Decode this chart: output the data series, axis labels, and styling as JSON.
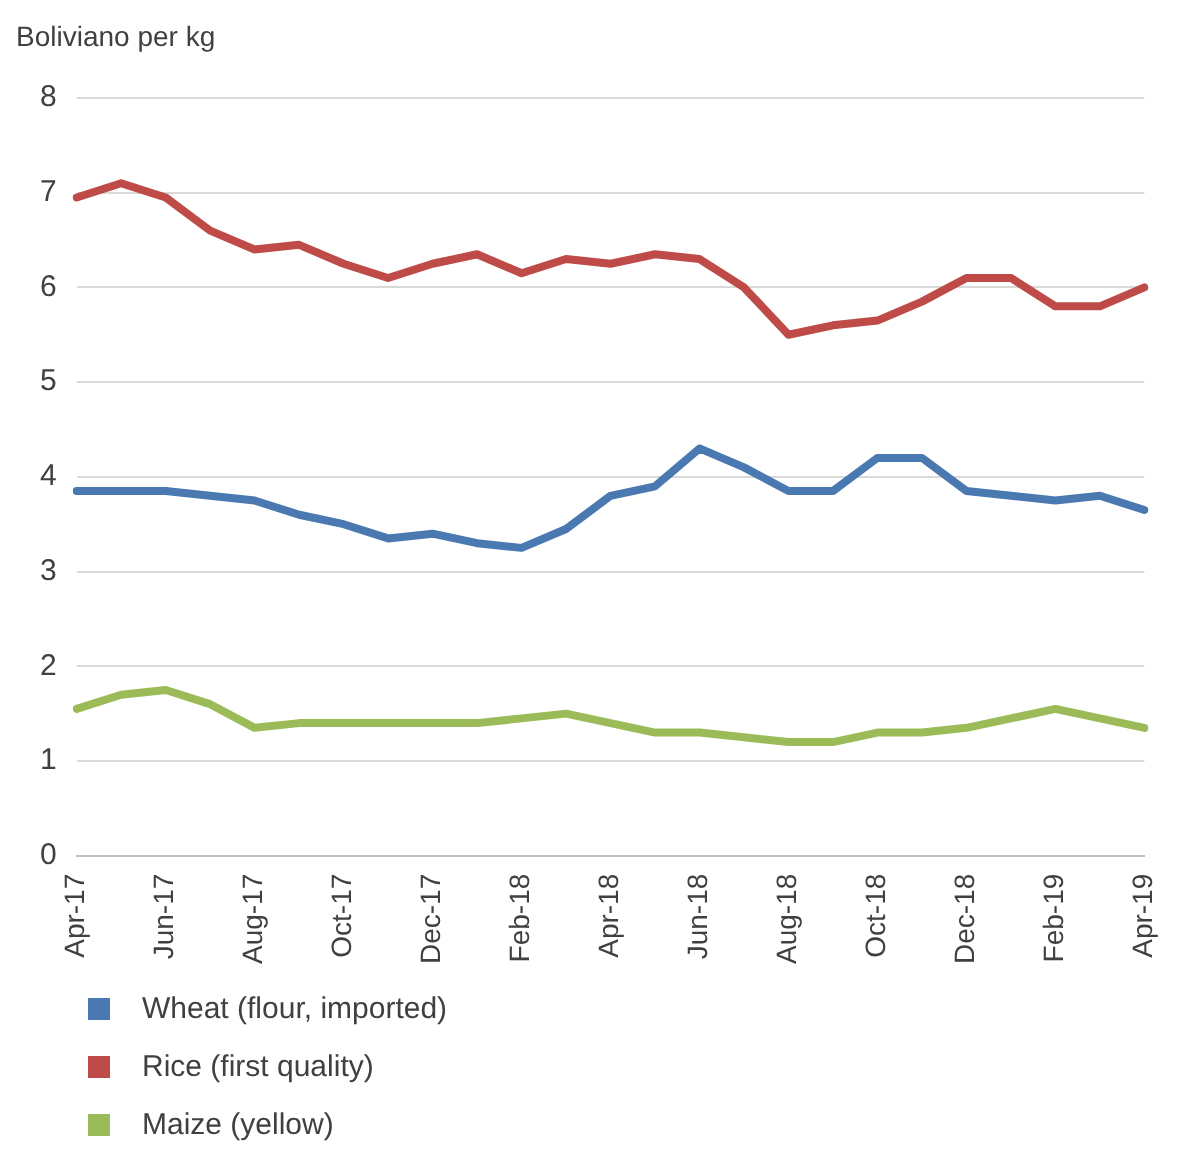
{
  "chart_data": {
    "type": "line",
    "ylabel": "Boliviano per kg",
    "categories": [
      "Apr-17",
      null,
      "Jun-17",
      null,
      "Aug-17",
      null,
      "Oct-17",
      null,
      "Dec-17",
      null,
      "Feb-18",
      null,
      "Apr-18",
      null,
      "Jun-18",
      null,
      "Aug-18",
      null,
      "Oct-18",
      null,
      "Dec-18",
      null,
      "Feb-19",
      null,
      "Apr-19"
    ],
    "series": [
      {
        "name": "Wheat (flour, imported)",
        "color": "#4a78b0",
        "values": [
          3.85,
          3.85,
          3.85,
          3.8,
          3.75,
          3.6,
          3.5,
          3.35,
          3.4,
          3.3,
          3.25,
          3.45,
          3.8,
          3.9,
          4.3,
          4.1,
          3.85,
          3.85,
          4.2,
          4.2,
          3.85,
          3.8,
          3.75,
          3.8,
          3.65
        ]
      },
      {
        "name": "Rice (first quality)",
        "color": "#be4b48",
        "values": [
          6.95,
          7.1,
          6.95,
          6.6,
          6.4,
          6.45,
          6.25,
          6.1,
          6.25,
          6.35,
          6.15,
          6.3,
          6.25,
          6.35,
          6.3,
          6.0,
          5.5,
          5.6,
          5.65,
          5.85,
          6.1,
          6.1,
          5.8,
          5.8,
          6.0
        ]
      },
      {
        "name": "Maize (yellow)",
        "color": "#9bbb59",
        "values": [
          1.55,
          1.7,
          1.75,
          1.6,
          1.35,
          1.4,
          1.4,
          1.4,
          1.4,
          1.4,
          1.45,
          1.5,
          1.4,
          1.3,
          1.3,
          1.25,
          1.2,
          1.2,
          1.3,
          1.3,
          1.35,
          1.45,
          1.55,
          1.45,
          1.35
        ]
      }
    ],
    "ylim": [
      0,
      8
    ],
    "yticks": [
      0,
      1,
      2,
      3,
      4,
      5,
      6,
      7,
      8
    ],
    "grid": "y",
    "legend": "bottom",
    "marker": "none",
    "line_style": "solid"
  }
}
